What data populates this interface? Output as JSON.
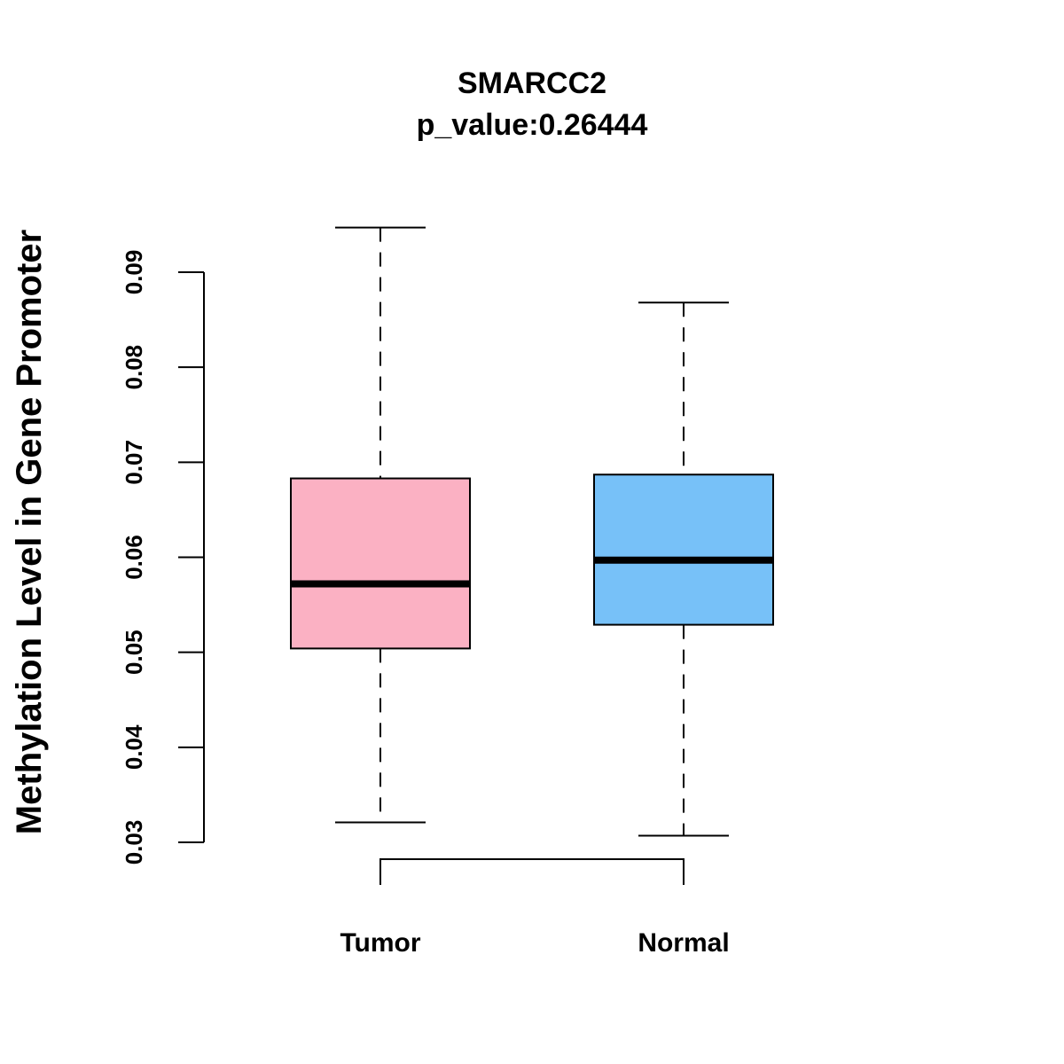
{
  "chart_data": {
    "type": "boxplot",
    "title": "SMARCC2",
    "subtitle": "p_value:0.26444",
    "xlabel": "",
    "ylabel": "Methylation Level in Gene Promoter",
    "y_ticks": [
      0.03,
      0.04,
      0.05,
      0.06,
      0.07,
      0.08,
      0.09
    ],
    "y_tick_labels": [
      "0.03",
      "0.04",
      "0.05",
      "0.06",
      "0.07",
      "0.08",
      "0.09"
    ],
    "ylim": [
      0.03,
      0.09
    ],
    "grid": false,
    "categories": [
      "Tumor",
      "Normal"
    ],
    "series": [
      {
        "name": "Tumor",
        "color": "#FBB1C3",
        "whisker_low": 0.0321,
        "q1": 0.0504,
        "median": 0.0572,
        "q3": 0.0683,
        "whisker_high": 0.0947
      },
      {
        "name": "Normal",
        "color": "#77C1F8",
        "whisker_low": 0.0307,
        "q1": 0.0529,
        "median": 0.0597,
        "q3": 0.0687,
        "whisker_high": 0.0868
      }
    ],
    "comparison_bracket": [
      "Tumor",
      "Normal"
    ]
  }
}
